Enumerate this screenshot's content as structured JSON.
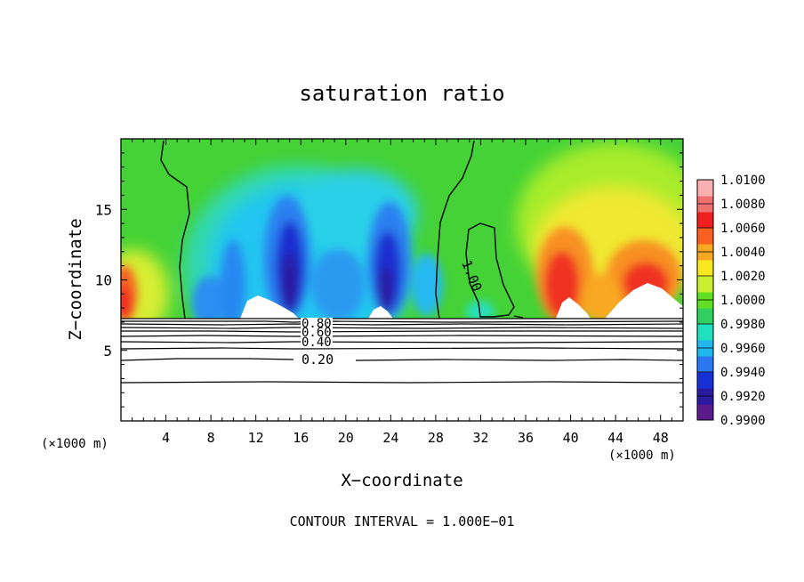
{
  "chart_data": {
    "type": "heatmap",
    "title": "saturation ratio",
    "xlabel": "X−coordinate",
    "ylabel": "Z−coordinate",
    "x_unit_left": "(×1000 m)",
    "x_unit_right": "(×1000 m)",
    "xlim": [
      0,
      50
    ],
    "ylim": [
      0,
      20
    ],
    "x_ticks": [
      4,
      8,
      12,
      16,
      20,
      24,
      28,
      32,
      36,
      40,
      44,
      48
    ],
    "y_ticks": [
      5,
      10,
      15
    ],
    "colorbar": {
      "min": 0.99,
      "max": 1.01,
      "labels": [
        "1.0100",
        "1.0080",
        "1.0060",
        "1.0040",
        "1.0020",
        "1.0000",
        "0.9980",
        "0.9960",
        "0.9940",
        "0.9920",
        "0.9900"
      ],
      "colors": [
        "#5a1a8a",
        "#2a1aa0",
        "#1830d8",
        "#2a78f0",
        "#20b8f0",
        "#20e0c0",
        "#30d060",
        "#60e020",
        "#c8f030",
        "#f8e820",
        "#f8a820",
        "#f86020",
        "#f02020",
        "#f07070",
        "#f8b0b0"
      ]
    },
    "surface_contours": [
      "0.80",
      "0.60",
      "0.40",
      "0.20"
    ],
    "contour_labels": [
      "1.00"
    ],
    "footer": "CONTOUR INTERVAL = 1.000E−01"
  }
}
